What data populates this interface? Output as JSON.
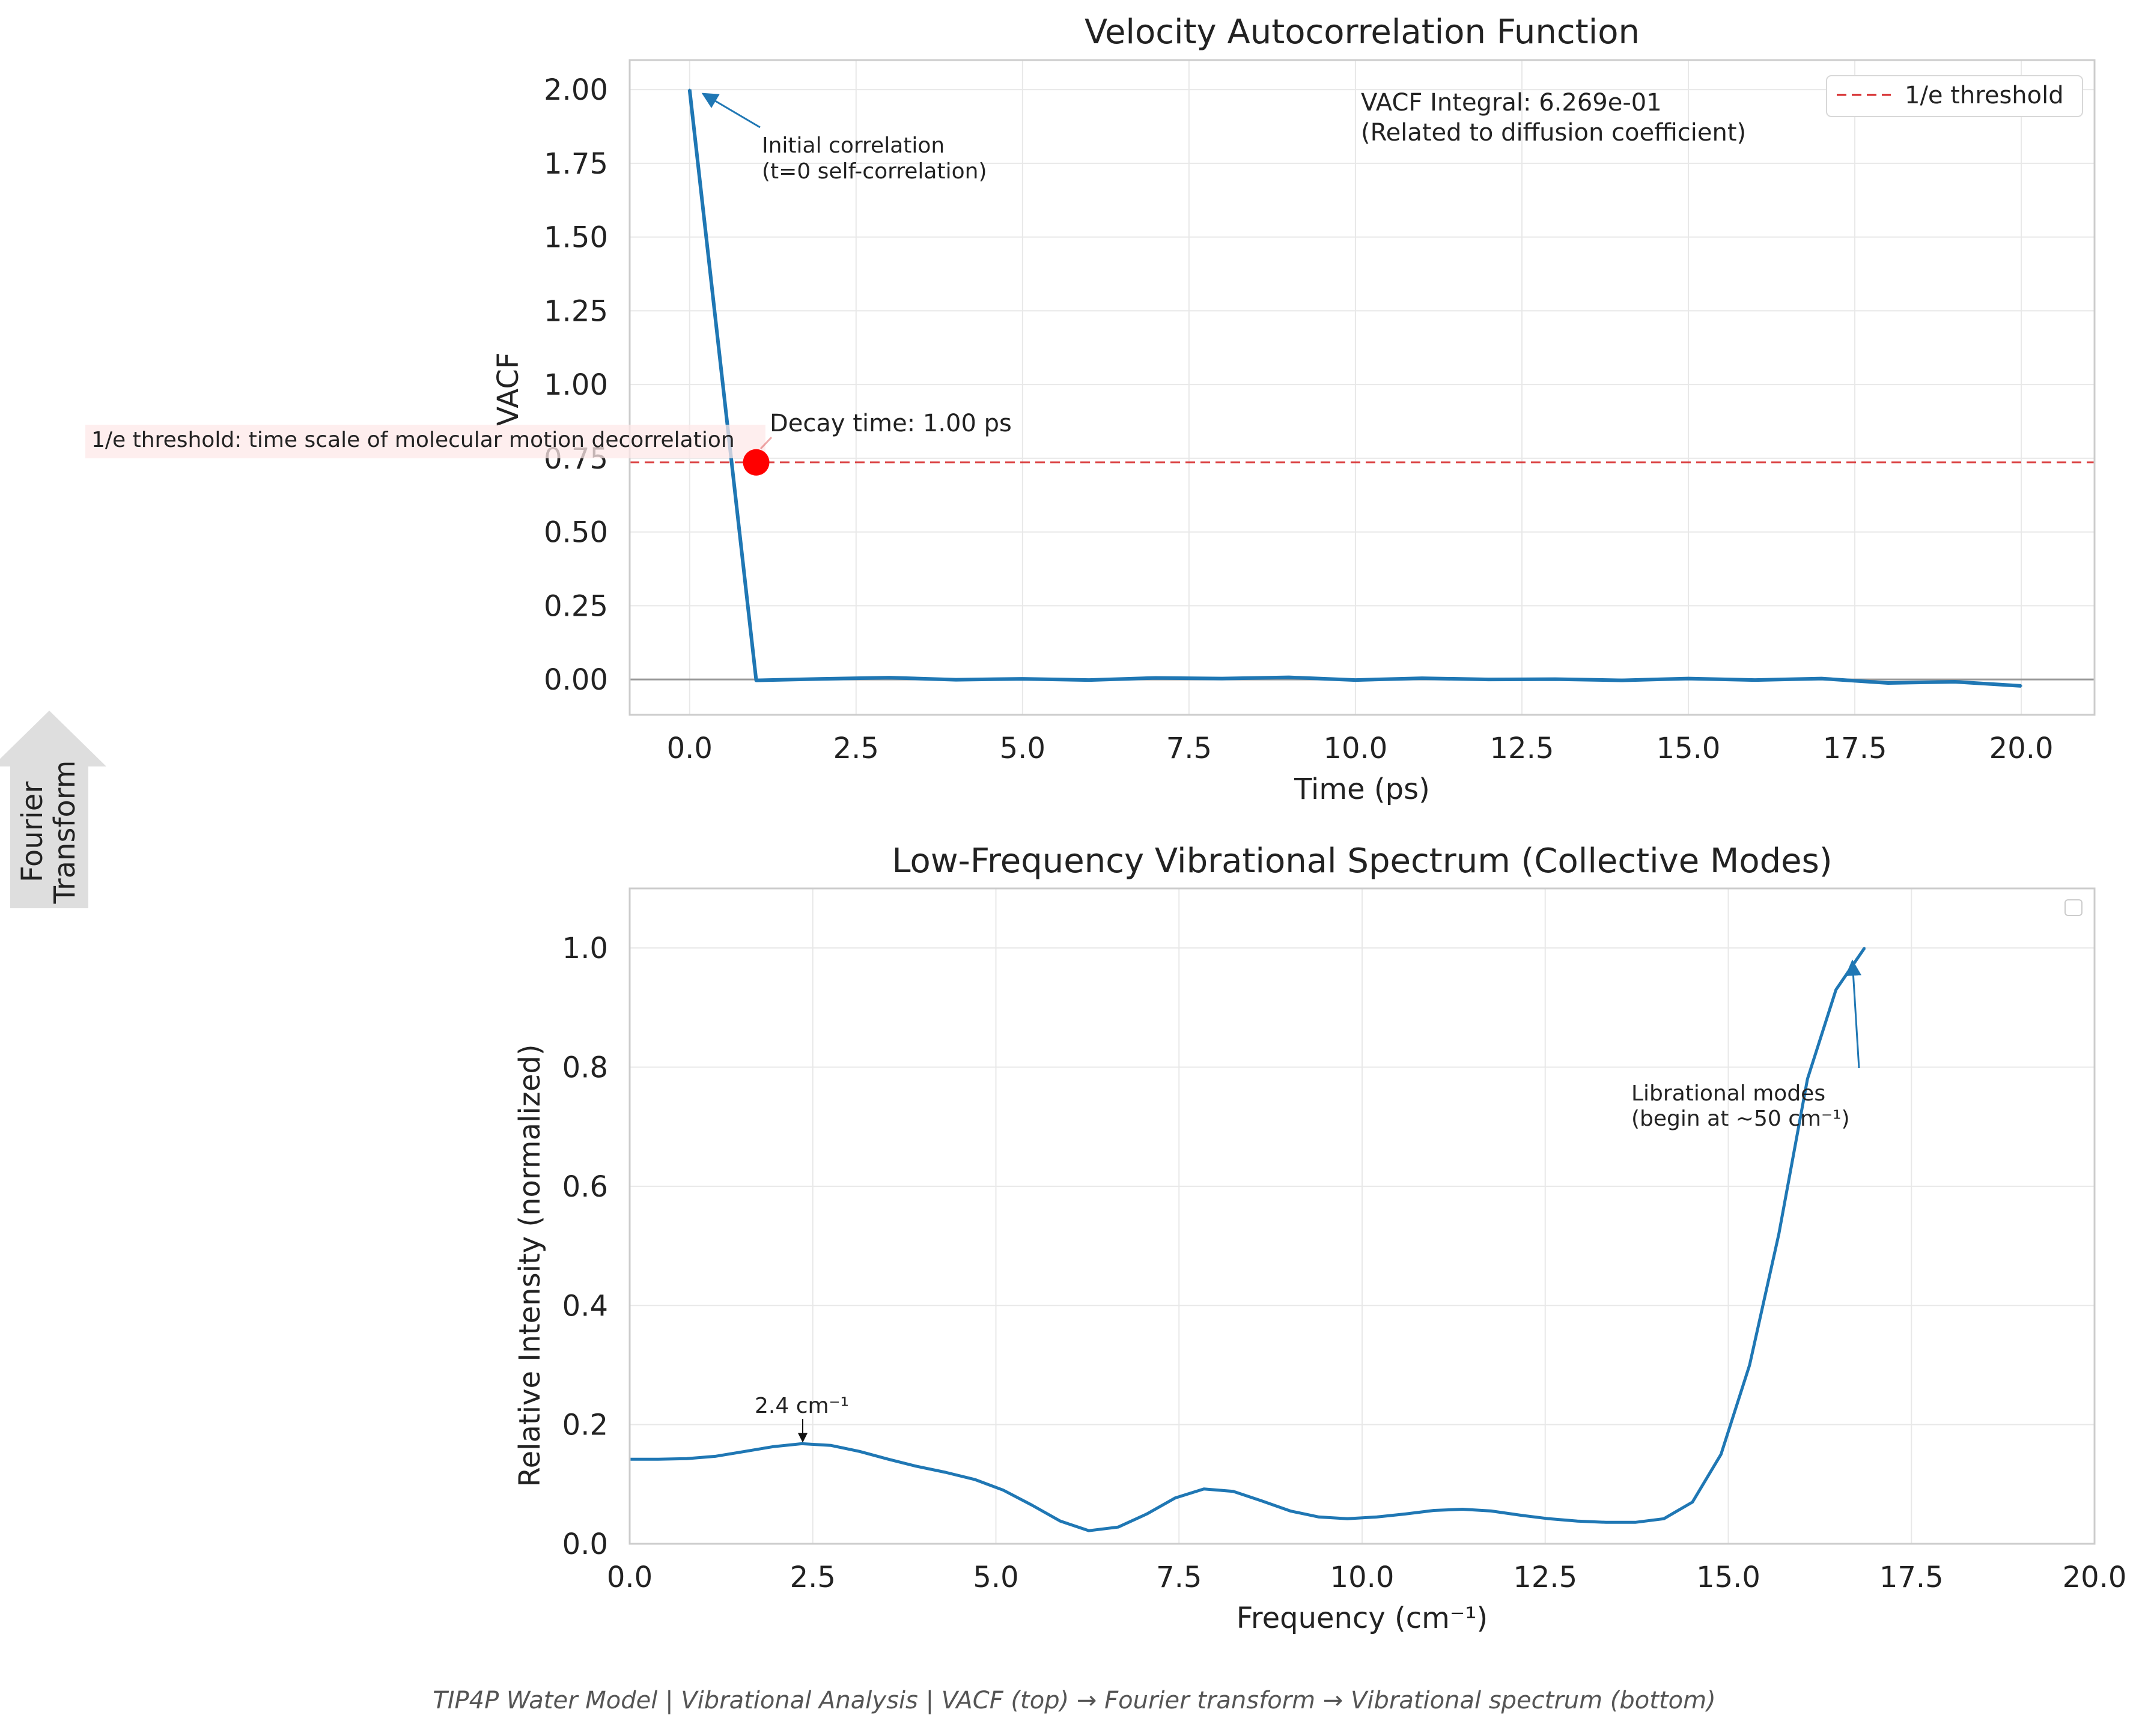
{
  "footer": "TIP4P Water Model | Vibrational Analysis | VACF (top) → Fourier transform → Vibrational spectrum (bottom)",
  "side_arrow": {
    "lines": [
      "Fourier",
      "Transform"
    ]
  },
  "colors": {
    "series": "#1f77b4",
    "threshold": "#d62728",
    "marker": "#ff0000",
    "grid": "#e8e8e8",
    "axes": "#cccccc",
    "zero_line": "#999999",
    "text": "#222222",
    "footer": "#555555",
    "side_arrow": "#dedede"
  },
  "chart_data": [
    {
      "type": "line",
      "title": "Velocity Autocorrelation Function",
      "xlabel": "Time (ps)",
      "ylabel": "VACF",
      "xlim": [
        -0.9,
        21.1
      ],
      "ylim": [
        -0.12,
        2.1
      ],
      "xticks": [
        0.0,
        2.5,
        5.0,
        7.5,
        10.0,
        12.5,
        15.0,
        17.5,
        20.0
      ],
      "xtick_labels": [
        "0.0",
        "2.5",
        "5.0",
        "7.5",
        "10.0",
        "12.5",
        "15.0",
        "17.5",
        "20.0"
      ],
      "yticks": [
        0.0,
        0.25,
        0.5,
        0.75,
        1.0,
        1.25,
        1.5,
        1.75,
        2.0
      ],
      "ytick_labels": [
        "0.00",
        "0.25",
        "0.50",
        "0.75",
        "1.00",
        "1.25",
        "1.50",
        "1.75",
        "2.00"
      ],
      "grid": true,
      "legend": {
        "position": "top-right",
        "entries": [
          {
            "label": "1/e threshold",
            "style": "dashed",
            "color": "#d62728"
          }
        ]
      },
      "series": [
        {
          "x": [
            0,
            1,
            2,
            3,
            4,
            5,
            6,
            7,
            8,
            9,
            10,
            11,
            12,
            13,
            14,
            15,
            16,
            17,
            18,
            19,
            20
          ],
          "y": [
            2.0,
            -0.003,
            0.002,
            0.006,
            -0.001,
            0.002,
            -0.002,
            0.005,
            0.003,
            0.007,
            -0.002,
            0.004,
            0.0,
            0.001,
            -0.003,
            0.003,
            -0.002,
            0.003,
            -0.012,
            -0.008,
            -0.022
          ]
        }
      ],
      "hlines": [
        {
          "y": 0.736,
          "label": "1/e threshold",
          "style": "dashed"
        },
        {
          "y": 0.0,
          "style": "solid"
        }
      ],
      "marker": {
        "x": 1.0,
        "y": 0.736
      },
      "annotations": [
        {
          "id": "initial",
          "lines": [
            "Initial correlation",
            "(t=0 self-correlation)"
          ],
          "x": 0.0,
          "y": 2.0
        },
        {
          "id": "decay",
          "lines": [
            "Decay time: 1.00 ps"
          ],
          "x": 1.0,
          "y": 0.736
        },
        {
          "id": "threshold",
          "lines": [
            "1/e threshold: time scale of molecular motion decorrelation"
          ],
          "x": 1.0,
          "y": 0.736
        },
        {
          "id": "integral",
          "lines": [
            "VACF Integral: 6.269e-01",
            "(Related to diffusion coefficient)"
          ]
        }
      ]
    },
    {
      "type": "line",
      "title": "Low-Frequency Vibrational Spectrum (Collective Modes)",
      "xlabel": "Frequency (cm⁻¹)",
      "ylabel": "Relative Intensity (normalized)",
      "xlim": [
        0,
        20
      ],
      "ylim": [
        0,
        1.1
      ],
      "xticks": [
        0,
        2.5,
        5,
        7.5,
        10,
        12.5,
        15,
        17.5,
        20
      ],
      "xtick_labels": [
        "0.0",
        "2.5",
        "5.0",
        "7.5",
        "10.0",
        "12.5",
        "15.0",
        "17.5",
        "20.0"
      ],
      "yticks": [
        0,
        0.2,
        0.4,
        0.6,
        0.8,
        1.0
      ],
      "ytick_labels": [
        "0.0",
        "0.2",
        "0.4",
        "0.6",
        "0.8",
        "1.0"
      ],
      "grid": true,
      "legend": {
        "position": "top-right",
        "entries": []
      },
      "series": [
        {
          "x": [
            0,
            0.39,
            0.78,
            1.18,
            1.57,
            1.96,
            2.35,
            2.75,
            3.14,
            3.53,
            3.92,
            4.31,
            4.71,
            5.1,
            5.49,
            5.88,
            6.27,
            6.67,
            7.06,
            7.45,
            7.84,
            8.24,
            8.63,
            9.02,
            9.41,
            9.8,
            10.2,
            10.59,
            10.98,
            11.37,
            11.76,
            12.16,
            12.55,
            12.94,
            13.33,
            13.73,
            14.12,
            14.51,
            14.9,
            15.29,
            15.69,
            16.08,
            16.47,
            16.86
          ],
          "y": [
            0.142,
            0.142,
            0.143,
            0.147,
            0.155,
            0.163,
            0.168,
            0.165,
            0.155,
            0.142,
            0.13,
            0.12,
            0.108,
            0.09,
            0.065,
            0.038,
            0.022,
            0.028,
            0.05,
            0.077,
            0.092,
            0.088,
            0.072,
            0.055,
            0.045,
            0.042,
            0.045,
            0.05,
            0.056,
            0.058,
            0.055,
            0.048,
            0.042,
            0.038,
            0.036,
            0.036,
            0.042,
            0.07,
            0.15,
            0.3,
            0.52,
            0.78,
            0.93,
            1.0
          ]
        }
      ],
      "annotations": [
        {
          "id": "peak",
          "lines": [
            "2.4 cm⁻¹"
          ],
          "x": 2.4,
          "y": 0.168
        },
        {
          "id": "librational",
          "lines": [
            "Librational modes",
            "(begin at ~50 cm⁻¹)"
          ],
          "x": 16.86,
          "y": 1.0
        }
      ]
    }
  ]
}
